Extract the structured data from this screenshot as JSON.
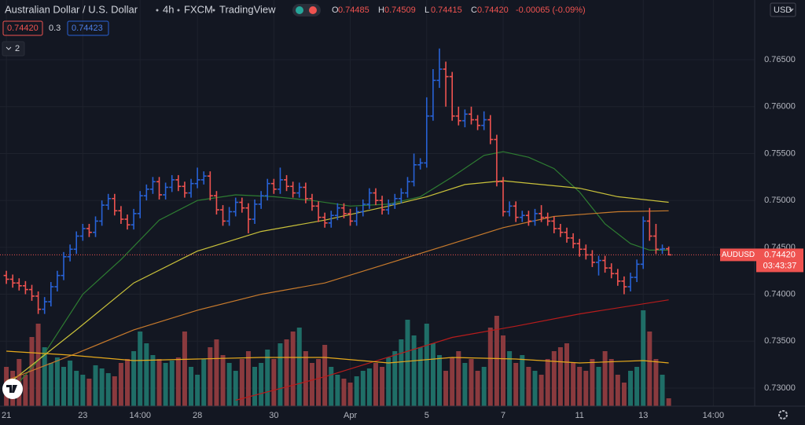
{
  "chart_data": {
    "type": "ohlc",
    "header": {
      "symbol": "Australian Dollar / U.S. Dollar",
      "interval": "4h",
      "source": "FXCM",
      "platform": "TradingView",
      "quote": [
        {
          "label": "O",
          "value": "0.74485"
        },
        {
          "label": "H",
          "value": "0.74509"
        },
        {
          "label": "L",
          "value": "0.74415"
        },
        {
          "label": "C",
          "value": "0.74420"
        }
      ],
      "change": "-0.00065 (-0.09%)"
    },
    "indicator_values": [
      "0.74420",
      "0.3",
      "0.74423"
    ],
    "collapsed_count": "2",
    "currency": "USD",
    "price_tag": {
      "symbol": "AUDUSD",
      "price": "0.74420",
      "countdown": "03:43:37"
    },
    "up_color": "#2862d6",
    "down_color": "#ef5350",
    "volume_up_color": "#1f6e67",
    "volume_down_color": "#8a3a3e",
    "open": [
      0.742,
      0.7416,
      0.7412,
      0.7409,
      0.7405,
      0.7398,
      0.7384,
      0.7392,
      0.7408,
      0.742,
      0.744,
      0.7448,
      0.7462,
      0.747,
      0.7466,
      0.7478,
      0.7495,
      0.7502,
      0.7489,
      0.748,
      0.7474,
      0.7486,
      0.7505,
      0.7512,
      0.752,
      0.7506,
      0.7514,
      0.7522,
      0.7515,
      0.7508,
      0.7518,
      0.7522,
      0.7526,
      0.7505,
      0.749,
      0.7478,
      0.7488,
      0.7498,
      0.7492,
      0.748,
      0.7496,
      0.7505,
      0.7518,
      0.7512,
      0.7522,
      0.7515,
      0.7508,
      0.7514,
      0.7502,
      0.7494,
      0.7482,
      0.7476,
      0.7484,
      0.7492,
      0.7486,
      0.7478,
      0.7488,
      0.7496,
      0.7508,
      0.75,
      0.749,
      0.7496,
      0.7502,
      0.7508,
      0.752,
      0.7538,
      0.754,
      0.759,
      0.7628,
      0.764,
      0.7632,
      0.759,
      0.7585,
      0.7592,
      0.7586,
      0.758,
      0.7586,
      0.7565,
      0.752,
      0.7488,
      0.7494,
      0.7482,
      0.7484,
      0.7478,
      0.7486,
      0.7482,
      0.7478,
      0.747,
      0.7466,
      0.746,
      0.7454,
      0.7448,
      0.7442,
      0.7434,
      0.7436,
      0.7428,
      0.7422,
      0.7414,
      0.7408,
      0.7418,
      0.7432,
      0.7478,
      0.7462,
      0.7448,
      0.74485
    ],
    "high": [
      0.7425,
      0.7421,
      0.7417,
      0.7414,
      0.741,
      0.7403,
      0.7397,
      0.7413,
      0.7425,
      0.7445,
      0.7453,
      0.7467,
      0.7475,
      0.7475,
      0.7483,
      0.75,
      0.7507,
      0.7507,
      0.7494,
      0.7485,
      0.7491,
      0.751,
      0.7517,
      0.7525,
      0.7525,
      0.7519,
      0.7527,
      0.7527,
      0.752,
      0.7523,
      0.7535,
      0.7531,
      0.7531,
      0.751,
      0.7495,
      0.7493,
      0.7503,
      0.7503,
      0.7497,
      0.7501,
      0.751,
      0.7523,
      0.7523,
      0.7535,
      0.7527,
      0.752,
      0.7519,
      0.7519,
      0.7507,
      0.7499,
      0.7487,
      0.7489,
      0.7497,
      0.7497,
      0.7491,
      0.7493,
      0.7501,
      0.7513,
      0.7513,
      0.7505,
      0.7501,
      0.7507,
      0.7513,
      0.7525,
      0.755,
      0.7545,
      0.761,
      0.764,
      0.7662,
      0.7648,
      0.7637,
      0.76,
      0.7597,
      0.76,
      0.7591,
      0.7595,
      0.7591,
      0.757,
      0.7525,
      0.7499,
      0.7499,
      0.7489,
      0.7489,
      0.7491,
      0.7495,
      0.7487,
      0.7483,
      0.7475,
      0.7471,
      0.7465,
      0.7459,
      0.7453,
      0.7447,
      0.7441,
      0.7441,
      0.7433,
      0.7427,
      0.7419,
      0.7423,
      0.7437,
      0.7483,
      0.7492,
      0.7475,
      0.7453,
      0.74509
    ],
    "low": [
      0.7411,
      0.7407,
      0.7404,
      0.74,
      0.7393,
      0.7379,
      0.7379,
      0.7387,
      0.7403,
      0.7415,
      0.7435,
      0.7443,
      0.7457,
      0.7461,
      0.7461,
      0.7473,
      0.749,
      0.7484,
      0.7475,
      0.7469,
      0.7469,
      0.7481,
      0.75,
      0.7507,
      0.7501,
      0.7501,
      0.7509,
      0.751,
      0.7503,
      0.7503,
      0.7513,
      0.7517,
      0.75,
      0.7485,
      0.7473,
      0.7473,
      0.7483,
      0.7487,
      0.7465,
      0.7475,
      0.7491,
      0.75,
      0.7507,
      0.7507,
      0.751,
      0.7503,
      0.7503,
      0.7497,
      0.7489,
      0.7477,
      0.7471,
      0.7471,
      0.7479,
      0.7481,
      0.7473,
      0.7473,
      0.7483,
      0.7491,
      0.7495,
      0.7485,
      0.7485,
      0.7491,
      0.7497,
      0.7503,
      0.7515,
      0.7533,
      0.7535,
      0.7585,
      0.762,
      0.76,
      0.7585,
      0.758,
      0.7578,
      0.7581,
      0.7575,
      0.7575,
      0.756,
      0.7515,
      0.7483,
      0.7483,
      0.7477,
      0.7477,
      0.7473,
      0.7473,
      0.7477,
      0.7473,
      0.7465,
      0.7461,
      0.7455,
      0.7449,
      0.744,
      0.7437,
      0.7429,
      0.742,
      0.7423,
      0.7417,
      0.7409,
      0.74,
      0.7403,
      0.7413,
      0.7427,
      0.7457,
      0.7443,
      0.7443,
      0.74415
    ],
    "close": [
      0.7416,
      0.7412,
      0.7409,
      0.7405,
      0.7398,
      0.7384,
      0.7392,
      0.7408,
      0.742,
      0.744,
      0.7448,
      0.7462,
      0.747,
      0.7466,
      0.7478,
      0.7495,
      0.7502,
      0.7489,
      0.748,
      0.7474,
      0.7486,
      0.7505,
      0.7512,
      0.752,
      0.7506,
      0.7514,
      0.7522,
      0.7515,
      0.7508,
      0.7518,
      0.7522,
      0.7526,
      0.7505,
      0.749,
      0.7478,
      0.7488,
      0.7498,
      0.7492,
      0.748,
      0.7496,
      0.7505,
      0.7518,
      0.7512,
      0.7522,
      0.7515,
      0.7508,
      0.7514,
      0.7502,
      0.7494,
      0.7482,
      0.7476,
      0.7484,
      0.7492,
      0.7486,
      0.7478,
      0.7488,
      0.7496,
      0.7508,
      0.75,
      0.749,
      0.7496,
      0.7502,
      0.7508,
      0.752,
      0.7538,
      0.754,
      0.759,
      0.7628,
      0.764,
      0.7632,
      0.759,
      0.7585,
      0.7592,
      0.7586,
      0.758,
      0.7586,
      0.7565,
      0.752,
      0.7488,
      0.7494,
      0.7482,
      0.7484,
      0.7478,
      0.7486,
      0.7482,
      0.7478,
      0.747,
      0.7466,
      0.746,
      0.7454,
      0.7448,
      0.7442,
      0.7434,
      0.7436,
      0.7428,
      0.7422,
      0.7414,
      0.7408,
      0.7418,
      0.7432,
      0.7478,
      0.7462,
      0.7448,
      0.74485,
      0.7442
    ],
    "volume": [
      50,
      45,
      60,
      40,
      88,
      105,
      75,
      55,
      62,
      50,
      58,
      45,
      40,
      35,
      52,
      48,
      42,
      38,
      55,
      60,
      70,
      95,
      80,
      65,
      60,
      55,
      58,
      62,
      95,
      50,
      40,
      60,
      75,
      85,
      65,
      55,
      45,
      60,
      70,
      50,
      55,
      72,
      60,
      80,
      85,
      95,
      100,
      70,
      55,
      60,
      78,
      50,
      40,
      35,
      30,
      38,
      45,
      48,
      55,
      50,
      62,
      70,
      85,
      110,
      90,
      75,
      105,
      80,
      65,
      45,
      62,
      70,
      55,
      60,
      45,
      50,
      100,
      115,
      90,
      70,
      55,
      65,
      50,
      45,
      40,
      60,
      70,
      75,
      80,
      55,
      50,
      45,
      60,
      50,
      70,
      60,
      40,
      30,
      45,
      50,
      122,
      95,
      60,
      40,
      10
    ],
    "overlays": [
      {
        "pane": "price",
        "color": "#2e7d32",
        "x": [
          0,
          6,
          12,
          18,
          24,
          30,
          36,
          42,
          48,
          54,
          60,
          65,
          70,
          75,
          78,
          82,
          86,
          90,
          94,
          98,
          101,
          104
        ],
        "values": [
          0.7291,
          0.7337,
          0.74,
          0.7437,
          0.7479,
          0.75,
          0.7506,
          0.7504,
          0.75,
          0.7494,
          0.7496,
          0.7504,
          0.7525,
          0.7548,
          0.7552,
          0.7546,
          0.7534,
          0.7509,
          0.7475,
          0.7454,
          0.7447,
          0.7447
        ]
      },
      {
        "pane": "price",
        "color": "#c9c13a",
        "x": [
          0,
          11,
          20,
          30,
          40,
          50,
          60,
          66,
          72,
          78,
          84,
          90,
          96,
          104
        ],
        "values": [
          0.7303,
          0.7362,
          0.7412,
          0.7446,
          0.7467,
          0.7479,
          0.7494,
          0.7504,
          0.7517,
          0.7521,
          0.7517,
          0.7513,
          0.7504,
          0.7498
        ]
      },
      {
        "pane": "price",
        "color": "#c77a2c",
        "x": [
          0,
          11,
          20,
          30,
          40,
          50,
          60,
          70,
          78,
          86,
          96,
          104
        ],
        "values": [
          0.7308,
          0.7337,
          0.7362,
          0.7383,
          0.74,
          0.7412,
          0.7433,
          0.7454,
          0.7471,
          0.7483,
          0.7488,
          0.7489
        ]
      },
      {
        "pane": "price",
        "color": "#b71c1c",
        "x": [
          36,
          50,
          60,
          70,
          80,
          90,
          104
        ],
        "values": [
          0.7287,
          0.7312,
          0.7333,
          0.7354,
          0.7366,
          0.7379,
          0.7394
        ]
      },
      {
        "pane": "volume",
        "color": "#e6a91c",
        "x": [
          0,
          10,
          20,
          30,
          40,
          50,
          60,
          70,
          80,
          90,
          100,
          104
        ],
        "values": [
          70,
          65,
          58,
          60,
          62,
          62,
          55,
          62,
          60,
          55,
          58,
          55
        ]
      }
    ],
    "xlim": [
      -1,
      117.5
    ],
    "xticks": [
      {
        "value": 0,
        "label": "21"
      },
      {
        "value": 12,
        "label": "23"
      },
      {
        "value": 21,
        "label": "14:00"
      },
      {
        "value": 30,
        "label": "28"
      },
      {
        "value": 42,
        "label": "30"
      },
      {
        "value": 54,
        "label": "Apr"
      },
      {
        "value": 66,
        "label": "5"
      },
      {
        "value": 78,
        "label": "7"
      },
      {
        "value": 90,
        "label": "11"
      },
      {
        "value": 100,
        "label": "13"
      },
      {
        "value": 111,
        "label": "14:00"
      }
    ],
    "ylim": [
      0.72807,
      0.77137
    ],
    "yticks": [
      {
        "value": 0.73,
        "label": "0.73000"
      },
      {
        "value": 0.735,
        "label": "0.73500"
      },
      {
        "value": 0.74,
        "label": "0.74000"
      },
      {
        "value": 0.745,
        "label": "0.74500"
      },
      {
        "value": 0.75,
        "label": "0.75000"
      },
      {
        "value": 0.755,
        "label": "0.75500"
      },
      {
        "value": 0.76,
        "label": "0.76000"
      },
      {
        "value": 0.765,
        "label": "0.76500"
      }
    ],
    "vlim": [
      0,
      125
    ],
    "grid": true
  }
}
